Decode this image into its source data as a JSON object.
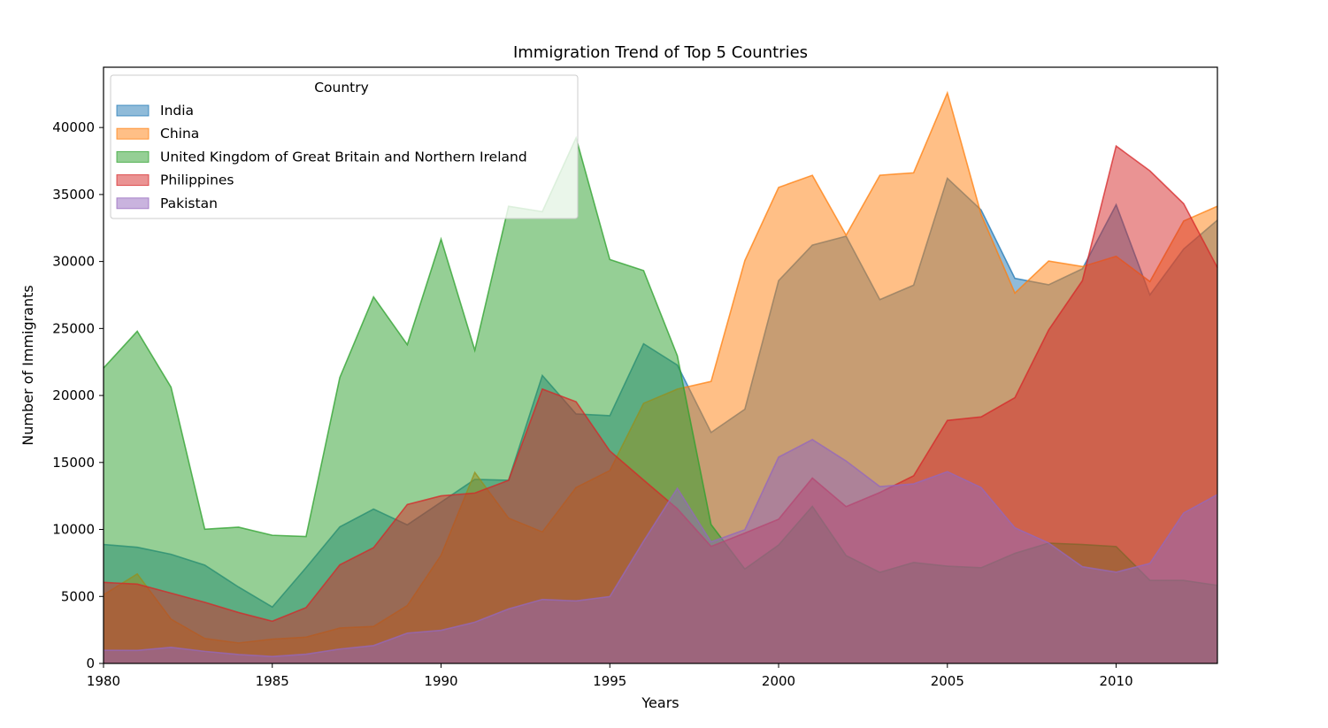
{
  "chart_data": {
    "type": "area",
    "stacked": false,
    "title": "Immigration Trend of Top 5 Countries",
    "xlabel": "Years",
    "ylabel": "Number of Immigrants",
    "xlim": [
      1980,
      2013
    ],
    "ylim": [
      0,
      44500
    ],
    "xticks": [
      "1980",
      "1985",
      "1990",
      "1995",
      "2000",
      "2005",
      "2010"
    ],
    "yticks": [
      "0",
      "5000",
      "10000",
      "15000",
      "20000",
      "25000",
      "30000",
      "35000",
      "40000"
    ],
    "grid": false,
    "alpha": 0.5,
    "legend": {
      "title": "Country",
      "position": "top-left"
    },
    "x": [
      1980,
      1981,
      1982,
      1983,
      1984,
      1985,
      1986,
      1987,
      1988,
      1989,
      1990,
      1991,
      1992,
      1993,
      1994,
      1995,
      1996,
      1997,
      1998,
      1999,
      2000,
      2001,
      2002,
      2003,
      2004,
      2005,
      2006,
      2007,
      2008,
      2009,
      2010,
      2011,
      2012,
      2013
    ],
    "series": [
      {
        "name": "India",
        "color": "#1f77b4",
        "values": [
          8880,
          8670,
          8147,
          7338,
          5704,
          4211,
          7150,
          10189,
          11522,
          10343,
          12041,
          13734,
          13673,
          21496,
          18620,
          18489,
          23859,
          22268,
          17241,
          18974,
          28572,
          31223,
          31889,
          27155,
          28235,
          36210,
          33848,
          28742,
          28261,
          29456,
          34235,
          27509,
          30933,
          33087
        ]
      },
      {
        "name": "China",
        "color": "#ff7f0e",
        "values": [
          5123,
          6682,
          3308,
          1863,
          1527,
          1816,
          1960,
          2643,
          2758,
          4323,
          8076,
          14255,
          10846,
          9817,
          13128,
          14398,
          19415,
          20475,
          21049,
          30069,
          35529,
          36434,
          31961,
          36439,
          36619,
          42584,
          33518,
          27642,
          30037,
          29622,
          30391,
          28502,
          33024,
          34129
        ]
      },
      {
        "name": "United Kingdom of Great Britain and Northern Ireland",
        "color": "#2ca02c",
        "values": [
          22045,
          24796,
          20620,
          10015,
          10170,
          9564,
          9470,
          21337,
          27359,
          23795,
          31668,
          23380,
          34123,
          33720,
          39231,
          30145,
          29322,
          22965,
          10367,
          7045,
          8840,
          11728,
          8046,
          6797,
          7533,
          7258,
          7140,
          8216,
          8979,
          8876,
          8724,
          6204,
          6195,
          5827
        ]
      },
      {
        "name": "Philippines",
        "color": "#d62728",
        "values": [
          6051,
          5921,
          5249,
          4562,
          3801,
          3150,
          4166,
          7360,
          8639,
          11865,
          12509,
          12718,
          13670,
          20479,
          19532,
          15864,
          13692,
          11549,
          8735,
          9734,
          10763,
          13836,
          11707,
          12758,
          14004,
          18139,
          18400,
          19837,
          24887,
          28573,
          38617,
          36765,
          34315,
          29544
        ]
      },
      {
        "name": "Pakistan",
        "color": "#9467bd",
        "values": [
          978,
          972,
          1201,
          900,
          668,
          514,
          691,
          1072,
          1334,
          2261,
          2470,
          3079,
          4071,
          4777,
          4666,
          4994,
          9125,
          13073,
          9068,
          9979,
          15400,
          16708,
          15110,
          13205,
          13399,
          14314,
          13127,
          10124,
          8994,
          7217,
          6811,
          7468,
          11227,
          12603
        ]
      }
    ]
  }
}
